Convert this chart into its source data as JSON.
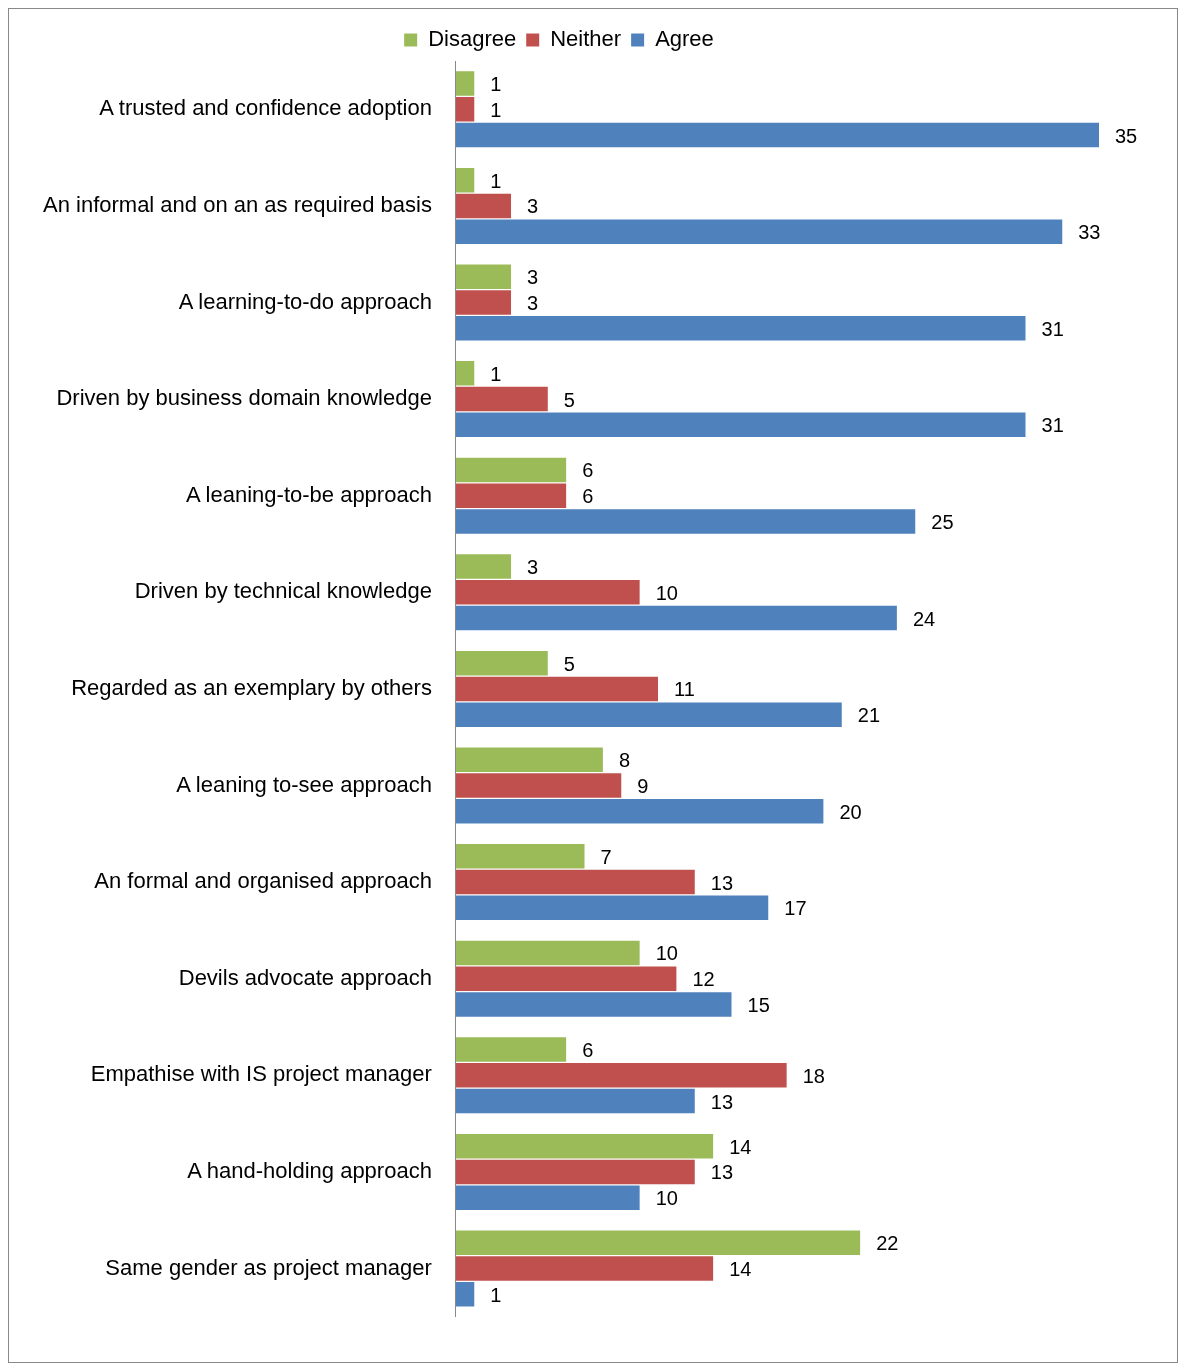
{
  "chart_data": {
    "type": "bar",
    "orientation": "horizontal",
    "categories": [
      "A trusted and confidence adoption",
      "An informal and on an as required basis",
      "A learning-to-do approach",
      "Driven by business domain knowledge",
      "A leaning-to-be approach",
      "Driven by technical knowledge",
      "Regarded as an exemplary by others",
      "A leaning to-see approach",
      "An formal and organised approach",
      "Devils advocate approach",
      "Empathise with IS project manager",
      "A hand-holding approach",
      "Same gender as project manager"
    ],
    "series": [
      {
        "name": "Disagree",
        "color": "#9bbb59",
        "values": [
          1,
          1,
          3,
          1,
          6,
          3,
          5,
          8,
          7,
          10,
          6,
          14,
          22
        ]
      },
      {
        "name": "Neither",
        "color": "#c0504d",
        "values": [
          1,
          3,
          3,
          5,
          6,
          10,
          11,
          9,
          13,
          12,
          18,
          13,
          14
        ]
      },
      {
        "name": "Agree",
        "color": "#4f81bd",
        "values": [
          35,
          33,
          31,
          31,
          25,
          24,
          21,
          20,
          17,
          15,
          13,
          10,
          1
        ]
      }
    ],
    "data_labels": true,
    "legend": "top",
    "grid": false
  }
}
